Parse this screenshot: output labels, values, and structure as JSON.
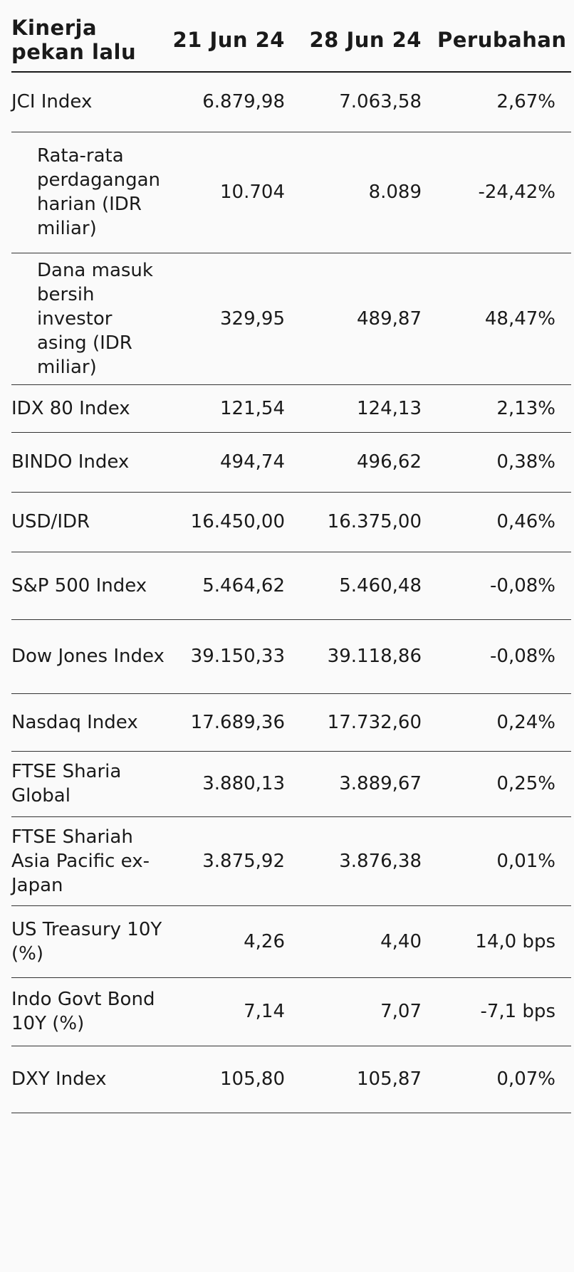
{
  "header": {
    "label_col": "Kinerja pekan lalu",
    "col_a": "21 Jun 24",
    "col_b": "28 Jun 24",
    "col_c": "Perubahan"
  },
  "rows": [
    {
      "label": "JCI Index",
      "a": "6.879,98",
      "b": "7.063,58",
      "c": "2,67%",
      "indent": false
    },
    {
      "label": "Rata-rata perdagangan harian (IDR miliar)",
      "a": "10.704",
      "b": "8.089",
      "c": "-24,42%",
      "indent": true
    },
    {
      "label": "Dana masuk bersih investor asing (IDR miliar)",
      "a": "329,95",
      "b": "489,87",
      "c": "48,47%",
      "indent": true
    },
    {
      "label": "IDX 80 Index",
      "a": "121,54",
      "b": "124,13",
      "c": "2,13%",
      "indent": false
    },
    {
      "label": "BINDO Index",
      "a": "494,74",
      "b": "496,62",
      "c": "0,38%",
      "indent": false
    },
    {
      "label": "USD/IDR",
      "a": "16.450,00",
      "b": "16.375,00",
      "c": "0,46%",
      "indent": false
    },
    {
      "label": "S&P 500 Index",
      "a": "5.464,62",
      "b": "5.460,48",
      "c": "-0,08%",
      "indent": false
    },
    {
      "label": "Dow Jones Index",
      "a": "39.150,33",
      "b": "39.118,86",
      "c": "-0,08%",
      "indent": false
    },
    {
      "label": "Nasdaq Index",
      "a": "17.689,36",
      "b": "17.732,60",
      "c": "0,24%",
      "indent": false
    },
    {
      "label": "FTSE Sharia Global",
      "a": "3.880,13",
      "b": "3.889,67",
      "c": "0,25%",
      "indent": false
    },
    {
      "label": "FTSE Shariah Asia Pacific ex-Japan",
      "a": "3.875,92",
      "b": "3.876,38",
      "c": "0,01%",
      "indent": false
    },
    {
      "label": "US Treasury 10Y (%)",
      "a": "4,26",
      "b": "4,40",
      "c": "14,0 bps",
      "indent": false
    },
    {
      "label": "Indo Govt Bond 10Y (%)",
      "a": "7,14",
      "b": "7,07",
      "c": "-7,1 bps",
      "indent": false
    },
    {
      "label": "DXY Index",
      "a": "105,80",
      "b": "105,87",
      "c": "0,07%",
      "indent": false
    }
  ]
}
